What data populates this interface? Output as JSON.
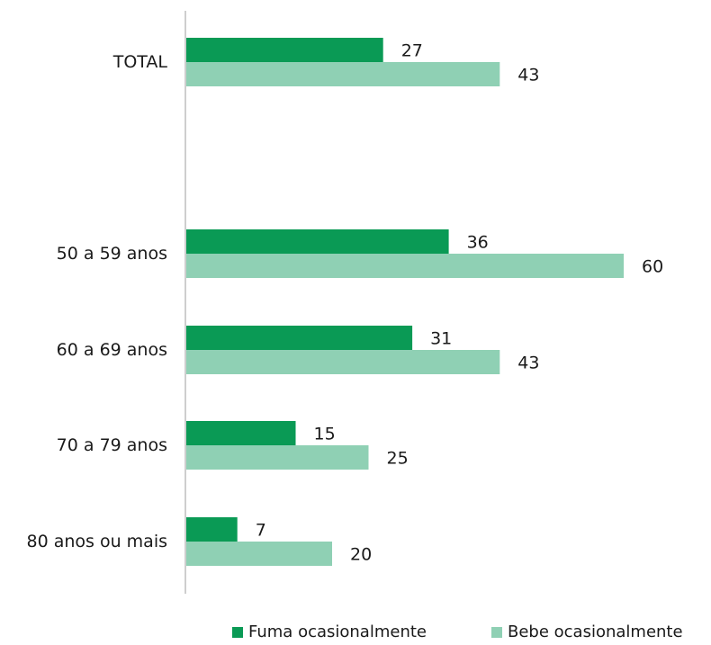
{
  "chart_data": {
    "type": "bar",
    "orientation": "horizontal",
    "categories": [
      "TOTAL",
      "50 a 59 anos",
      "60 a 69 anos",
      "70 a 79 anos",
      "80 anos ou mais"
    ],
    "series": [
      {
        "name": "Fuma ocasionalmente",
        "values": [
          27,
          36,
          31,
          15,
          7
        ],
        "color": "#0a9a55"
      },
      {
        "name": "Bebe ocasionalmente",
        "values": [
          43,
          60,
          43,
          25,
          20
        ],
        "color": "#8fd0b4"
      }
    ],
    "xlim": [
      0,
      60
    ],
    "grid": false,
    "legend_placement": "bottom",
    "title": "",
    "xlabel": "",
    "ylabel": ""
  }
}
